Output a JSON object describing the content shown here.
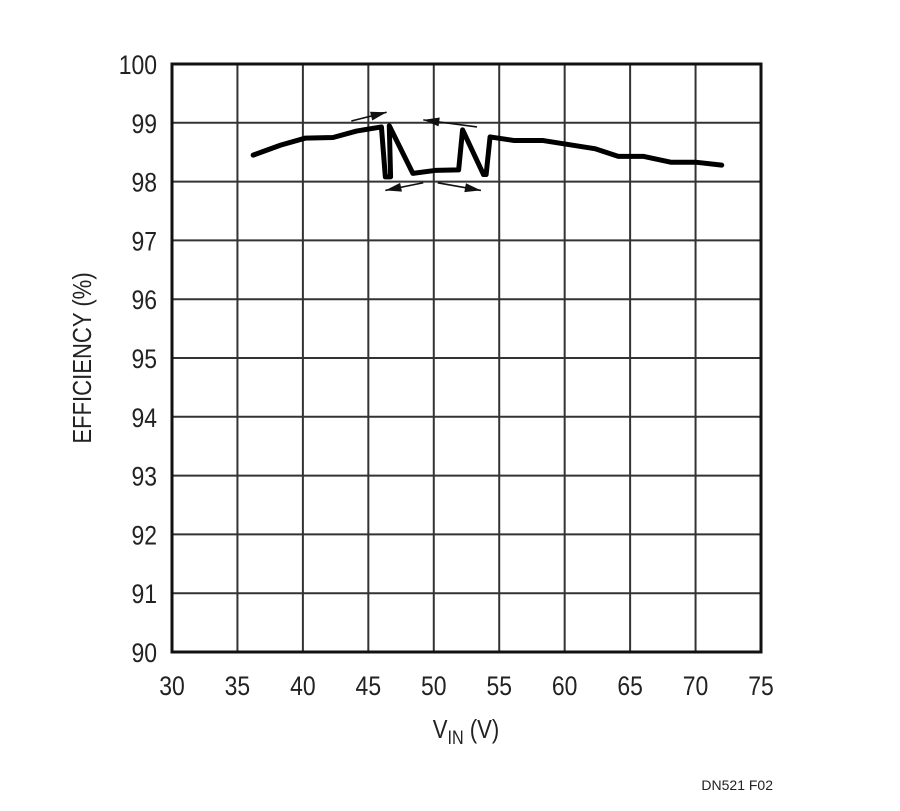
{
  "chart_data": {
    "type": "line",
    "title": "",
    "xlabel": {
      "main": "V",
      "sub": "IN",
      "unit": " (V)"
    },
    "ylabel": "EFFICIENCY (%)",
    "xlim": [
      30,
      75
    ],
    "ylim": [
      90,
      100
    ],
    "x_ticks": [
      "30",
      "35",
      "40",
      "45",
      "50",
      "55",
      "60",
      "65",
      "70",
      "75"
    ],
    "y_ticks": [
      "90",
      "91",
      "92",
      "93",
      "94",
      "95",
      "96",
      "97",
      "98",
      "99",
      "100"
    ],
    "grid": true,
    "legend": "none",
    "series": [
      {
        "x": [
          36.2,
          38.3,
          40.2,
          42.3,
          44.1,
          46.0,
          46.3,
          46.7,
          46.6,
          48.4,
          50.1,
          51.9,
          52.2,
          53.8,
          54.0,
          54.3,
          56.1,
          58.3,
          60.3,
          62.3,
          64.1,
          66.0,
          68.1,
          70.0,
          72.0
        ],
        "y": [
          98.45,
          98.62,
          98.74,
          98.75,
          98.86,
          98.93,
          98.08,
          98.08,
          98.95,
          98.14,
          98.19,
          98.2,
          98.88,
          98.12,
          98.12,
          98.76,
          98.7,
          98.7,
          98.63,
          98.56,
          98.43,
          98.43,
          98.33,
          98.33,
          98.28
        ]
      }
    ],
    "arrows": [
      {
        "from": [
          43.7,
          99.03
        ],
        "to": [
          46.4,
          99.18
        ]
      },
      {
        "from": [
          49.2,
          97.98
        ],
        "to": [
          46.3,
          97.85
        ]
      },
      {
        "from": [
          50.3,
          97.98
        ],
        "to": [
          53.6,
          97.85
        ]
      },
      {
        "from": [
          53.3,
          98.93
        ],
        "to": [
          49.2,
          99.05
        ]
      }
    ],
    "line_color": "#000000",
    "grid_color": "#333333"
  },
  "figure_id": "DN521 F02"
}
